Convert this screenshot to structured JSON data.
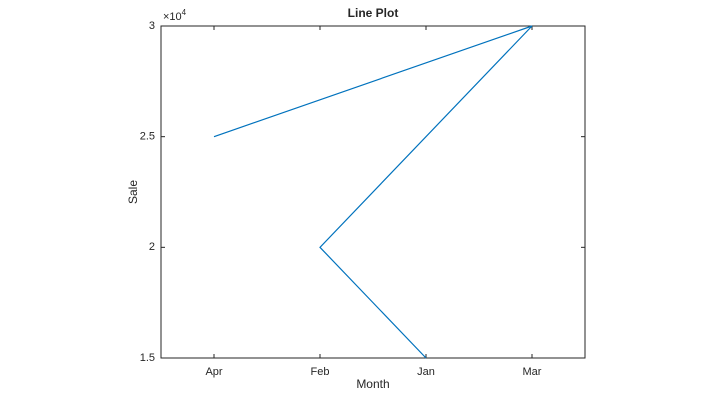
{
  "chart_data": {
    "type": "line",
    "title": "Line Plot",
    "x_label": "Month",
    "y_label": "Sale",
    "categories": [
      "Apr",
      "Feb",
      "Jan",
      "Mar"
    ],
    "x": [
      "Jan",
      "Feb",
      "Mar",
      "Apr"
    ],
    "series": [
      {
        "name": "Sale",
        "color": "#0072bd",
        "values": [
          15000,
          20000,
          30000,
          25000
        ]
      }
    ],
    "ylim": [
      15000,
      30000
    ],
    "yticks": [
      {
        "value": 15000,
        "label": "1.5"
      },
      {
        "value": 20000,
        "label": "2"
      },
      {
        "value": 25000,
        "label": "2.5"
      },
      {
        "value": 30000,
        "label": "3"
      }
    ],
    "y_multiplier": {
      "base": "×10",
      "exponent": "4"
    },
    "grid": false
  }
}
